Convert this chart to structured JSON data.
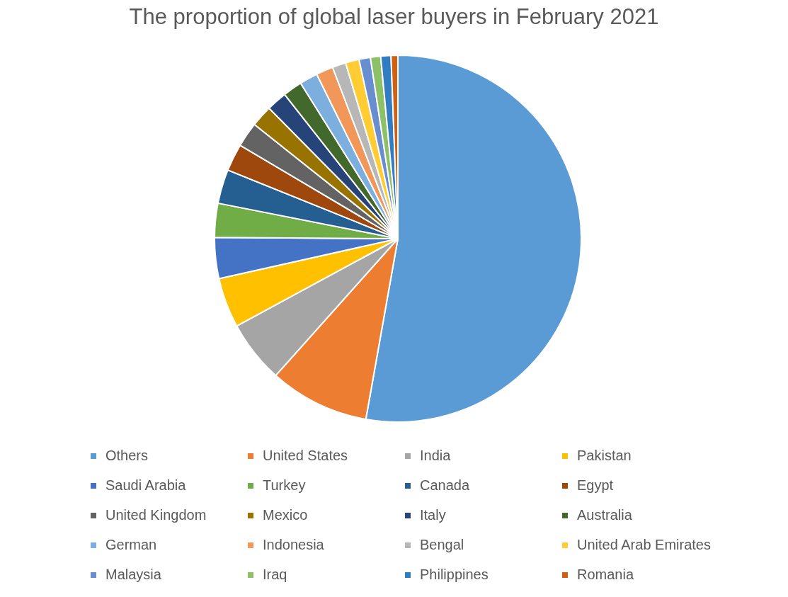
{
  "chart_data": {
    "type": "pie",
    "title": "The proportion of global laser buyers in February 2021",
    "categories": [
      "Others",
      "United States",
      "India",
      "Pakistan",
      "Saudi Arabia",
      "Turkey",
      "Canada",
      "Egypt",
      "United Kingdom",
      "Mexico",
      "Italy",
      "Australia",
      "German",
      "Indonesia",
      "Bengal",
      "United Arab Emirates",
      "Malaysia",
      "Iraq",
      "Philippines",
      "Romania"
    ],
    "values": [
      52.8,
      8.8,
      5.5,
      4.4,
      3.6,
      3.0,
      3.0,
      2.4,
      2.2,
      1.9,
      1.8,
      1.7,
      1.6,
      1.5,
      1.2,
      1.2,
      1.0,
      0.9,
      0.9,
      0.6
    ],
    "colors": [
      "#5b9bd5",
      "#ed7d31",
      "#a5a5a5",
      "#ffc000",
      "#4472c4",
      "#70ad47",
      "#255e91",
      "#9e480e",
      "#636363",
      "#997300",
      "#264478",
      "#43682b",
      "#7cafdd",
      "#f1975a",
      "#b7b7b7",
      "#ffcd33",
      "#698ed0",
      "#8cc168",
      "#327dc2",
      "#d26012"
    ],
    "legend": "bottom"
  }
}
